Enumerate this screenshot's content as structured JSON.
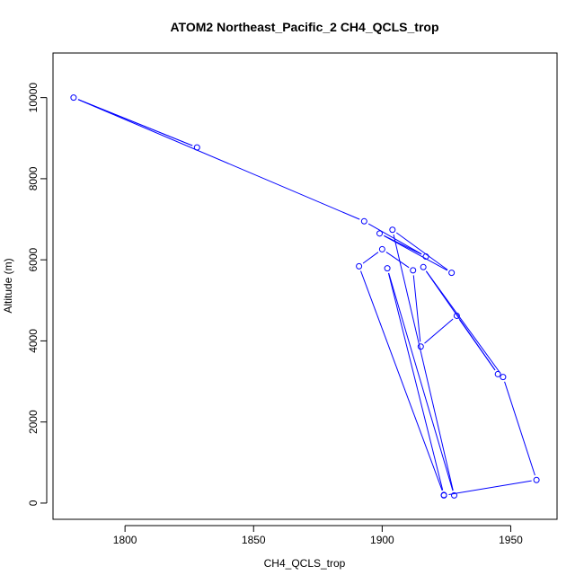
{
  "chart_data": {
    "type": "scatter",
    "title": "ATOM2 Northeast_Pacific_2 CH4_QCLS_trop",
    "xlabel": "CH4_QCLS_trop",
    "ylabel": "Altitude (m)",
    "xlim": [
      1772,
      1968
    ],
    "ylim": [
      -400,
      11100
    ],
    "xticks": [
      1800,
      1850,
      1900,
      1950
    ],
    "yticks": [
      0,
      2000,
      4000,
      6000,
      8000,
      10000
    ],
    "grid": false,
    "series_color": "#0000ff",
    "series": [
      {
        "x": [
          1780,
          1828,
          1893,
          1899,
          1904,
          1917,
          1927,
          1900,
          1891,
          1902,
          1912,
          1915,
          1929,
          1945,
          1947,
          1960,
          1924,
          1928,
          1924,
          1916
        ],
        "y": [
          10000,
          8770,
          6950,
          6650,
          6740,
          6080,
          5680,
          6260,
          5840,
          5790,
          5740,
          3860,
          4620,
          3180,
          3110,
          570,
          200,
          190,
          190,
          5820
        ]
      }
    ],
    "path_order": [
      0,
      1,
      0,
      2,
      5,
      3,
      6,
      4,
      17,
      9,
      16,
      8,
      7,
      10,
      11,
      12,
      13,
      19,
      14,
      15,
      18
    ]
  }
}
